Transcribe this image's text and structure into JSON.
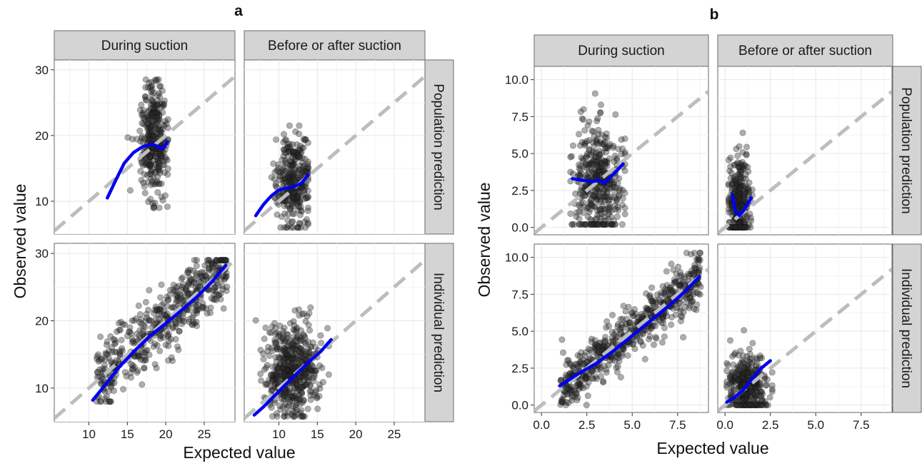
{
  "chart_data": [
    {
      "type": "scatter",
      "label": "a",
      "xlabel": "Expected value",
      "ylabel": "Observed value",
      "columns": [
        "During suction",
        "Before or after suction"
      ],
      "rows": [
        "Population prediction",
        "Individual prediction"
      ],
      "xlim": [
        5.5,
        29
      ],
      "ylim": [
        5,
        31.5
      ],
      "xticks": [
        10,
        15,
        20,
        25
      ],
      "yticks": [
        10,
        20,
        30
      ],
      "xtick_labels": [
        "10",
        "15",
        "20",
        "25"
      ],
      "ytick_labels": [
        "10",
        "20",
        "30"
      ],
      "identity_line": true,
      "colors": {
        "points": "#333333",
        "smooth": "#0000ee",
        "identity": "#bdbdbd",
        "strip": "#d4d4d4"
      },
      "panels": [
        {
          "col": 0,
          "row": 0,
          "clusters": [
            {
              "x": [
                14,
                20.3
              ],
              "y": [
                9,
                28.5
              ],
              "n": 340,
              "cx": 18.4,
              "sx": 0.9,
              "cy": 19.5,
              "sy": 4.2
            }
          ],
          "smooth": {
            "x": [
              12.4,
              13.5,
              14.6,
              15.8,
              17.0,
              18.2,
              19.0,
              19.6,
              20.2
            ],
            "y": [
              10.5,
              13.2,
              15.8,
              17.4,
              18.3,
              18.7,
              18.3,
              18.0,
              19.0
            ]
          }
        },
        {
          "col": 1,
          "row": 0,
          "clusters": [
            {
              "x": [
                9,
                13.8
              ],
              "y": [
                6,
                21.5
              ],
              "n": 320,
              "cx": 11.8,
              "sx": 1.1,
              "cy": 13,
              "sy": 3.4
            }
          ],
          "smooth": {
            "x": [
              7.0,
              8.0,
              9.0,
              10.0,
              11.0,
              12.0,
              13.0,
              13.8
            ],
            "y": [
              7.8,
              9.5,
              10.8,
              11.7,
              12.0,
              12.2,
              12.8,
              14.0
            ]
          }
        },
        {
          "col": 0,
          "row": 1,
          "clusters": [
            {
              "x": [
                11,
                28
              ],
              "y": [
                8,
                29
              ],
              "n": 520,
              "along": true,
              "spread": 2.6
            }
          ],
          "smooth": {
            "x": [
              10.5,
              12.0,
              14.0,
              16.0,
              18.0,
              20.0,
              22.0,
              24.0,
              26.0,
              27.8
            ],
            "y": [
              8.2,
              10.3,
              13.2,
              15.6,
              17.8,
              19.6,
              21.5,
              23.5,
              25.8,
              28.2
            ]
          }
        },
        {
          "col": 1,
          "row": 1,
          "clusters": [
            {
              "x": [
                7,
                16.5
              ],
              "y": [
                5.8,
                26.5
              ],
              "n": 520,
              "cx": 11.7,
              "sx": 1.8,
              "cy": 12.5,
              "sy": 3.6
            }
          ],
          "smooth": {
            "x": [
              6.8,
              8.0,
              10.0,
              12.0,
              14.0,
              15.5,
              16.8
            ],
            "y": [
              6.0,
              7.2,
              9.5,
              11.8,
              14.0,
              15.5,
              17.2
            ]
          }
        }
      ]
    },
    {
      "type": "scatter",
      "label": "b",
      "xlabel": "Expected value",
      "ylabel": "Observed value",
      "columns": [
        "During suction",
        "Before or after suction"
      ],
      "rows": [
        "Population prediction",
        "Individual prediction"
      ],
      "xlim": [
        -0.4,
        9.2
      ],
      "ylim": [
        -0.5,
        10.9
      ],
      "xticks": [
        0,
        2.5,
        5,
        7.5
      ],
      "yticks": [
        0,
        2.5,
        5,
        7.5,
        10
      ],
      "xtick_labels": [
        "0.0",
        "2.5",
        "5.0",
        "7.5"
      ],
      "ytick_labels": [
        "0.0",
        "2.5",
        "5.0",
        "7.5",
        "10.0"
      ],
      "identity_line": true,
      "colors": {
        "points": "#333333",
        "smooth": "#0000ee",
        "identity": "#bdbdbd",
        "strip": "#d4d4d4"
      },
      "panels": [
        {
          "col": 0,
          "row": 0,
          "clusters": [
            {
              "x": [
                1.6,
                4.6
              ],
              "y": [
                0.2,
                10.3
              ],
              "n": 420,
              "cx": 3.1,
              "sx": 0.7,
              "cy": 3.0,
              "sy": 2.1
            }
          ],
          "smooth": {
            "x": [
              1.7,
              2.2,
              2.8,
              3.2,
              3.5,
              3.8,
              4.2,
              4.5
            ],
            "y": [
              3.3,
              3.2,
              3.1,
              3.2,
              3.0,
              3.4,
              3.9,
              4.3
            ]
          }
        },
        {
          "col": 1,
          "row": 0,
          "clusters": [
            {
              "x": [
                0.2,
                1.5
              ],
              "y": [
                0,
                6.8
              ],
              "n": 300,
              "cx": 0.8,
              "sx": 0.3,
              "cy": 1.8,
              "sy": 1.6
            }
          ],
          "smooth": {
            "x": [
              0.4,
              0.6,
              0.8,
              1.0,
              1.2,
              1.45
            ],
            "y": [
              2.2,
              1.0,
              0.8,
              1.1,
              1.5,
              2.0
            ]
          }
        },
        {
          "col": 0,
          "row": 1,
          "clusters": [
            {
              "x": [
                1,
                8.8
              ],
              "y": [
                0,
                10.3
              ],
              "n": 620,
              "along": true,
              "spread": 0.9
            }
          ],
          "smooth": {
            "x": [
              1.0,
              2.0,
              3.0,
              4.0,
              5.0,
              6.0,
              7.0,
              8.0,
              8.7
            ],
            "y": [
              1.3,
              2.1,
              2.8,
              3.7,
              4.7,
              5.7,
              6.7,
              7.8,
              8.7
            ]
          }
        },
        {
          "col": 1,
          "row": 1,
          "clusters": [
            {
              "x": [
                0.1,
                2.6
              ],
              "y": [
                0,
                6.8
              ],
              "n": 380,
              "cx": 1.2,
              "sx": 0.55,
              "cy": 1.3,
              "sy": 1.1
            }
          ],
          "smooth": {
            "x": [
              0.1,
              0.5,
              1.0,
              1.5,
              2.0,
              2.5
            ],
            "y": [
              0.2,
              0.5,
              1.0,
              1.8,
              2.5,
              3.0
            ]
          }
        }
      ]
    }
  ]
}
